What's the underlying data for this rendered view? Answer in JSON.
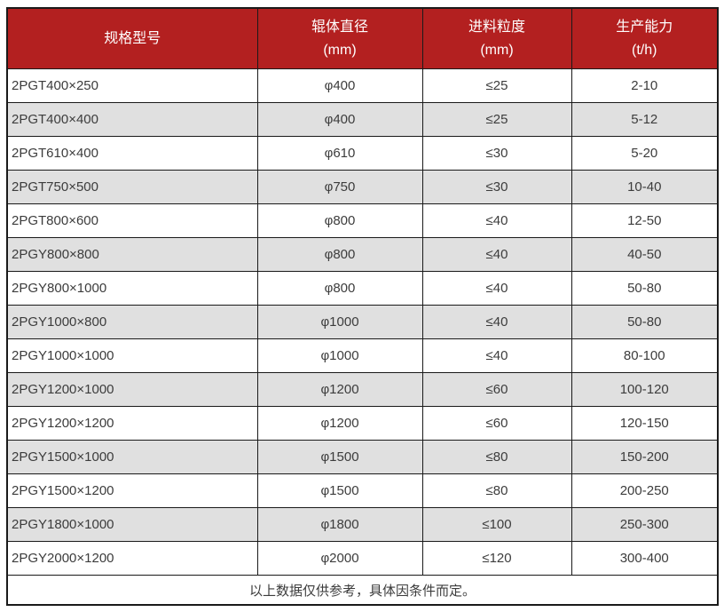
{
  "colors": {
    "header_bg": "#b32020",
    "header_text": "#ffffff",
    "row_bg": "#ffffff",
    "row_alt_bg": "#e0e0e0",
    "border": "#1a1a1a",
    "text": "#3c3c3c"
  },
  "table": {
    "columns": [
      {
        "title": "规格型号",
        "unit": ""
      },
      {
        "title": "辊体直径",
        "unit": "(mm)"
      },
      {
        "title": "进料粒度",
        "unit": "(mm)"
      },
      {
        "title": "生产能力",
        "unit": "(t/h)"
      }
    ],
    "rows": [
      [
        "2PGT400×250",
        "φ400",
        "≤25",
        "2-10"
      ],
      [
        "2PGT400×400",
        "φ400",
        "≤25",
        "5-12"
      ],
      [
        "2PGT610×400",
        "φ610",
        "≤30",
        "5-20"
      ],
      [
        "2PGT750×500",
        "φ750",
        "≤30",
        "10-40"
      ],
      [
        "2PGT800×600",
        "φ800",
        "≤40",
        "12-50"
      ],
      [
        "2PGY800×800",
        "φ800",
        "≤40",
        "40-50"
      ],
      [
        "2PGY800×1000",
        "φ800",
        "≤40",
        "50-80"
      ],
      [
        "2PGY1000×800",
        "φ1000",
        "≤40",
        "50-80"
      ],
      [
        "2PGY1000×1000",
        "φ1000",
        "≤40",
        "80-100"
      ],
      [
        "2PGY1200×1000",
        "φ1200",
        "≤60",
        "100-120"
      ],
      [
        "2PGY1200×1200",
        "φ1200",
        "≤60",
        "120-150"
      ],
      [
        "2PGY1500×1000",
        "φ1500",
        "≤80",
        "150-200"
      ],
      [
        "2PGY1500×1200",
        "φ1500",
        "≤80",
        "200-250"
      ],
      [
        "2PGY1800×1000",
        "φ1800",
        "≤100",
        "250-300"
      ],
      [
        "2PGY2000×1200",
        "φ2000",
        "≤120",
        "300-400"
      ]
    ],
    "footer_note": "以上数据仅供参考，具体因条件而定。"
  }
}
